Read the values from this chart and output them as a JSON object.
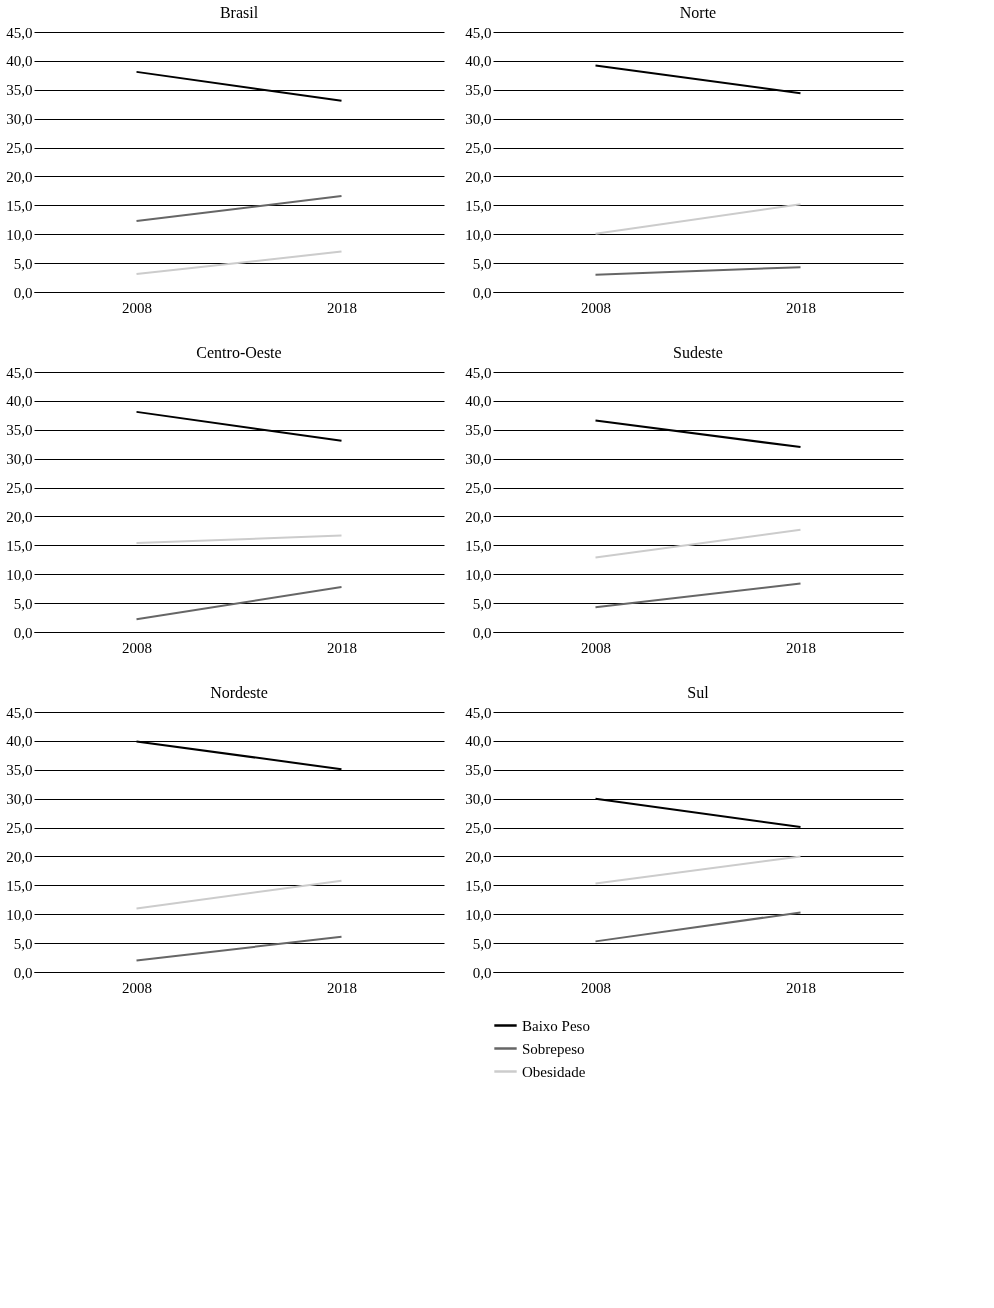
{
  "chart_data": [
    {
      "type": "line",
      "title": "Brasil",
      "categories": [
        "2008",
        "2018"
      ],
      "ylim": [
        0,
        45
      ],
      "yticks": [
        {
          "value": 0,
          "label": "0,0"
        },
        {
          "value": 5,
          "label": "5,0"
        },
        {
          "value": 10,
          "label": "10,0"
        },
        {
          "value": 15,
          "label": "15,0"
        },
        {
          "value": 20,
          "label": "20,0"
        },
        {
          "value": 25,
          "label": "25,0"
        },
        {
          "value": 30,
          "label": "30,0"
        },
        {
          "value": 35,
          "label": "35,0"
        },
        {
          "value": 40,
          "label": "40,0"
        },
        {
          "value": 45,
          "label": "45,0"
        }
      ],
      "grid": "y",
      "marker": "none",
      "series": [
        {
          "color": "#000000",
          "values": [
            38.1,
            33.1
          ]
        },
        {
          "color": "#666666",
          "values": [
            12.3,
            16.6
          ]
        },
        {
          "color": "#cccccc",
          "values": [
            3.1,
            7.0
          ]
        }
      ]
    },
    {
      "type": "line",
      "title": "Norte",
      "categories": [
        "2008",
        "2018"
      ],
      "ylim": [
        0,
        45
      ],
      "yticks": [
        {
          "value": 0,
          "label": "0,0"
        },
        {
          "value": 5,
          "label": "5,0"
        },
        {
          "value": 10,
          "label": "10,0"
        },
        {
          "value": 15,
          "label": "15,0"
        },
        {
          "value": 20,
          "label": "20,0"
        },
        {
          "value": 25,
          "label": "25,0"
        },
        {
          "value": 30,
          "label": "30,0"
        },
        {
          "value": 35,
          "label": "35,0"
        },
        {
          "value": 40,
          "label": "40,0"
        },
        {
          "value": 45,
          "label": "45,0"
        }
      ],
      "grid": "y",
      "marker": "none",
      "series": [
        {
          "color": "#000000",
          "values": [
            39.2,
            34.4
          ]
        },
        {
          "color": "#666666",
          "values": [
            3.0,
            4.3
          ]
        },
        {
          "color": "#cccccc",
          "values": [
            10.1,
            15.2
          ]
        }
      ]
    },
    {
      "type": "line",
      "title": "Centro-Oeste",
      "categories": [
        "2008",
        "2018"
      ],
      "ylim": [
        0,
        45
      ],
      "yticks": [
        {
          "value": 0,
          "label": "0,0"
        },
        {
          "value": 5,
          "label": "5,0"
        },
        {
          "value": 10,
          "label": "10,0"
        },
        {
          "value": 15,
          "label": "15,0"
        },
        {
          "value": 20,
          "label": "20,0"
        },
        {
          "value": 25,
          "label": "25,0"
        },
        {
          "value": 30,
          "label": "30,0"
        },
        {
          "value": 35,
          "label": "35,0"
        },
        {
          "value": 40,
          "label": "40,0"
        },
        {
          "value": 45,
          "label": "45,0"
        }
      ],
      "grid": "y",
      "marker": "none",
      "series": [
        {
          "color": "#000000",
          "values": [
            38.1,
            33.1
          ]
        },
        {
          "color": "#666666",
          "values": [
            2.2,
            7.8
          ]
        },
        {
          "color": "#cccccc",
          "values": [
            15.4,
            16.7
          ]
        }
      ]
    },
    {
      "type": "line",
      "title": "Sudeste",
      "categories": [
        "2008",
        "2018"
      ],
      "ylim": [
        0,
        45
      ],
      "yticks": [
        {
          "value": 0,
          "label": "0,0"
        },
        {
          "value": 5,
          "label": "5,0"
        },
        {
          "value": 10,
          "label": "10,0"
        },
        {
          "value": 15,
          "label": "15,0"
        },
        {
          "value": 20,
          "label": "20,0"
        },
        {
          "value": 25,
          "label": "25,0"
        },
        {
          "value": 30,
          "label": "30,0"
        },
        {
          "value": 35,
          "label": "35,0"
        },
        {
          "value": 40,
          "label": "40,0"
        },
        {
          "value": 45,
          "label": "45,0"
        }
      ],
      "grid": "y",
      "marker": "none",
      "series": [
        {
          "color": "#000000",
          "values": [
            36.6,
            32.0
          ]
        },
        {
          "color": "#666666",
          "values": [
            4.3,
            8.4
          ]
        },
        {
          "color": "#cccccc",
          "values": [
            12.9,
            17.7
          ]
        }
      ]
    },
    {
      "type": "line",
      "title": "Nordeste",
      "categories": [
        "2008",
        "2018"
      ],
      "ylim": [
        0,
        45
      ],
      "yticks": [
        {
          "value": 0,
          "label": "0,0"
        },
        {
          "value": 5,
          "label": "5,0"
        },
        {
          "value": 10,
          "label": "10,0"
        },
        {
          "value": 15,
          "label": "15,0"
        },
        {
          "value": 20,
          "label": "20,0"
        },
        {
          "value": 25,
          "label": "25,0"
        },
        {
          "value": 30,
          "label": "30,0"
        },
        {
          "value": 35,
          "label": "35,0"
        },
        {
          "value": 40,
          "label": "40,0"
        },
        {
          "value": 45,
          "label": "45,0"
        }
      ],
      "grid": "y",
      "marker": "none",
      "series": [
        {
          "color": "#000000",
          "values": [
            39.9,
            35.1
          ]
        },
        {
          "color": "#666666",
          "values": [
            2.0,
            6.1
          ]
        },
        {
          "color": "#cccccc",
          "values": [
            11.0,
            15.8
          ]
        }
      ]
    },
    {
      "type": "line",
      "title": "Sul",
      "categories": [
        "2008",
        "2018"
      ],
      "ylim": [
        0,
        45
      ],
      "yticks": [
        {
          "value": 0,
          "label": "0,0"
        },
        {
          "value": 5,
          "label": "5,0"
        },
        {
          "value": 10,
          "label": "10,0"
        },
        {
          "value": 15,
          "label": "15,0"
        },
        {
          "value": 20,
          "label": "20,0"
        },
        {
          "value": 25,
          "label": "25,0"
        },
        {
          "value": 30,
          "label": "30,0"
        },
        {
          "value": 35,
          "label": "35,0"
        },
        {
          "value": 40,
          "label": "40,0"
        },
        {
          "value": 45,
          "label": "45,0"
        }
      ],
      "grid": "y",
      "marker": "none",
      "legend": "bottom",
      "series": [
        {
          "name": "Baixo Peso",
          "color": "#000000",
          "values": [
            30.0,
            25.1
          ]
        },
        {
          "name": "Sobrepeso",
          "color": "#666666",
          "values": [
            5.3,
            10.3
          ]
        },
        {
          "name": "Obesidade",
          "color": "#cccccc",
          "values": [
            15.3,
            20.0
          ]
        }
      ]
    }
  ]
}
